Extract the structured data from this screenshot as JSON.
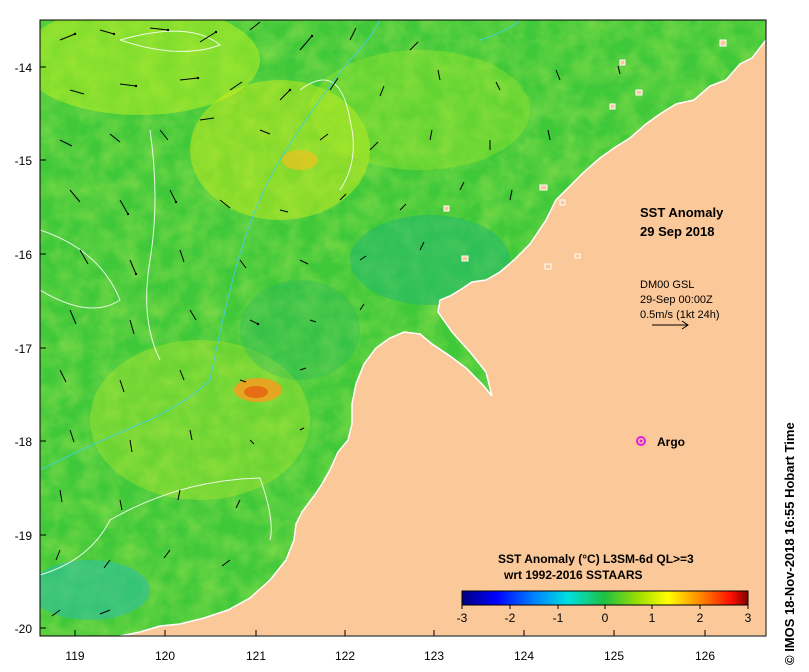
{
  "title": {
    "line1": "SST Anomaly",
    "line2": "29 Sep 2018"
  },
  "current_legend": {
    "source": "DM00 GSL",
    "time": "29-Sep 00:00Z",
    "scale": "0.5m/s (1kt 24h)"
  },
  "argo_label": "Argo",
  "colorbar": {
    "title_line1": "SST Anomaly (°C) L3SM-6d QL>=3",
    "title_line2": "wrt 1992-2016 SSTAARS",
    "ticks": [
      "-3",
      "-2",
      "-1",
      "0",
      "1",
      "2",
      "3"
    ],
    "colors": [
      "#00007f",
      "#0000ff",
      "#007fff",
      "#00ffff",
      "#00c060",
      "#7fff00",
      "#ffff00",
      "#ff7f00",
      "#ff0000",
      "#7f0000"
    ]
  },
  "credit": "© IMOS 18-Nov-2018 16:55 Hobart Time",
  "axes": {
    "lat_ticks": [
      "-14",
      "-15",
      "-16",
      "-17",
      "-18",
      "-19",
      "-20"
    ],
    "lon_ticks": [
      "119",
      "120",
      "121",
      "122",
      "123",
      "124",
      "125",
      "126"
    ]
  },
  "colors": {
    "land": "#fbc899",
    "ocean": "#3ec83a",
    "argo": "#e020e0"
  }
}
